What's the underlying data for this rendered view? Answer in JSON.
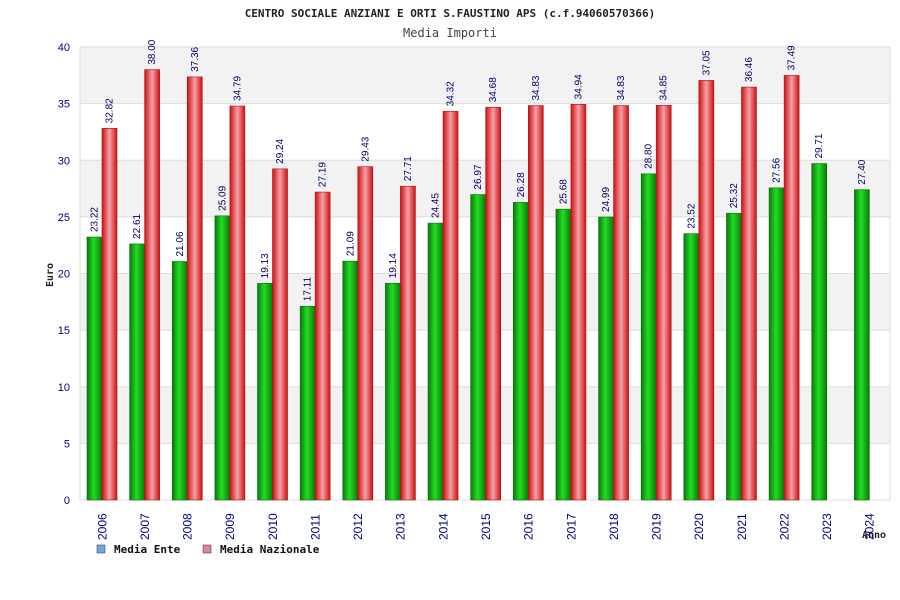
{
  "chart_data": {
    "type": "bar",
    "title": "CENTRO SOCIALE ANZIANI E ORTI S.FAUSTINO APS (c.f.94060570366)",
    "subtitle": "Media Importi",
    "ylabel": "Euro",
    "xlabel": "Anno",
    "ylim": [
      0,
      40
    ],
    "yticks": [
      0,
      5,
      10,
      15,
      20,
      25,
      30,
      35,
      40
    ],
    "grid": true,
    "legend_position": "bottom-left",
    "categories": [
      "2006",
      "2007",
      "2008",
      "2009",
      "2010",
      "2011",
      "2012",
      "2013",
      "2014",
      "2015",
      "2016",
      "2017",
      "2018",
      "2019",
      "2020",
      "2021",
      "2022",
      "2023",
      "2024"
    ],
    "series": [
      {
        "name": "Media Ente",
        "color": "#22aa22",
        "legend_color": "#6fa8e0",
        "values": [
          23.22,
          22.61,
          21.06,
          25.09,
          19.13,
          17.11,
          21.09,
          19.14,
          24.45,
          26.97,
          26.28,
          25.68,
          24.99,
          28.8,
          23.52,
          25.32,
          27.56,
          29.71,
          27.4
        ],
        "labels": [
          "23.22",
          "22.61",
          "21.06",
          "25.09",
          "19.13",
          "17.11",
          "21.09",
          "19.14",
          "24.45",
          "26.97",
          "26.28",
          "25.68",
          "24.99",
          "28.80",
          "23.52",
          "25.32",
          "27.56",
          "29.71",
          "27.40"
        ]
      },
      {
        "name": "Media Nazionale",
        "color": "#ee2222",
        "legend_color": "#e080a8",
        "values": [
          32.82,
          38.0,
          37.36,
          34.79,
          29.24,
          27.19,
          29.43,
          27.71,
          34.32,
          34.68,
          34.83,
          34.94,
          34.83,
          34.85,
          37.05,
          36.46,
          37.49,
          null,
          null
        ],
        "labels": [
          "32.82",
          "38.00",
          "37.36",
          "34.79",
          "29.24",
          "27.19",
          "29.43",
          "27.71",
          "34.32",
          "34.68",
          "34.83",
          "34.94",
          "34.83",
          "34.85",
          "37.05",
          "36.46",
          "37.49",
          "",
          ""
        ]
      }
    ]
  }
}
